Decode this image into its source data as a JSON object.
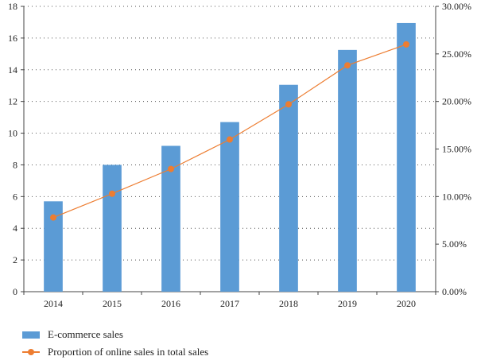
{
  "chart_data": {
    "type": "bar+line",
    "categories": [
      "2014",
      "2015",
      "2016",
      "2017",
      "2018",
      "2019",
      "2020"
    ],
    "series": [
      {
        "name": "E-commerce sales",
        "kind": "bar",
        "axis": "left",
        "color": "#5b9bd5",
        "values": [
          5.7,
          8.0,
          9.2,
          10.7,
          13.05,
          15.25,
          16.95
        ]
      },
      {
        "name": "Proportion of online sales in total sales",
        "kind": "line",
        "axis": "right",
        "color": "#ed7d31",
        "values": [
          7.8,
          10.3,
          12.9,
          16.0,
          19.7,
          23.8,
          26.0
        ]
      }
    ],
    "y_left": {
      "min": 0,
      "max": 18,
      "ticks": [
        "0",
        "2",
        "4",
        "6",
        "8",
        "10",
        "12",
        "14",
        "16",
        "18"
      ]
    },
    "y_right": {
      "min": 0,
      "max": 30,
      "unit": "%",
      "ticks": [
        "0.00%",
        "5.00%",
        "10.00%",
        "15.00%",
        "20.00%",
        "25.00%",
        "30.00%"
      ]
    },
    "grid": "horizontal-dotted",
    "legend_position": "bottom-left"
  }
}
